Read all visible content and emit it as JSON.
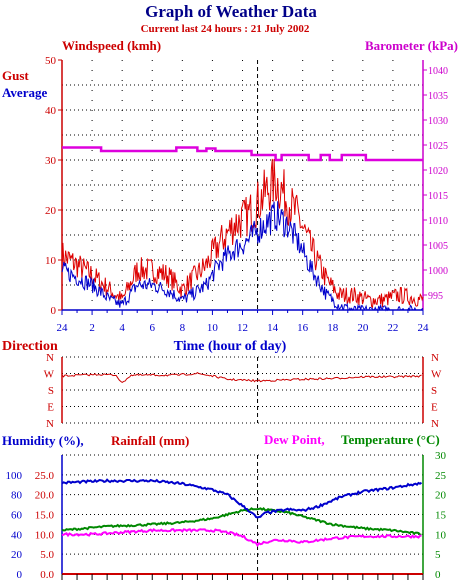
{
  "header": {
    "title": "Graph of Weather Data",
    "subtitle": "Current last 24 hours : 21 July 2002"
  },
  "colors": {
    "gust": "#dd0000",
    "average": "#0000cc",
    "barometer": "#dd00dd",
    "direction": "#cc0000",
    "humidity": "#0000cc",
    "rainfall": "#cc0000",
    "dewpoint": "#ff00ff",
    "temperature": "#008800",
    "axis_left": "#cc0000",
    "axis_right": "#cc00cc",
    "axis_blue": "#0000cc",
    "axis_green": "#008800"
  },
  "chart_data": [
    {
      "type": "line",
      "id": "wind",
      "labels": {
        "ylabel_left": "Windspeed (kmh)",
        "ylabel_right": "Barometer (kPa)",
        "xlabel": "Time (hour of day)",
        "legend_gust": "Gust",
        "legend_average": "Average"
      },
      "xticks": [
        "24",
        "2",
        "4",
        "6",
        "8",
        "10",
        "12",
        "14",
        "16",
        "18",
        "20",
        "22",
        "24"
      ],
      "yticks_left": [
        "0",
        "10",
        "20",
        "30",
        "40",
        "50"
      ],
      "yticks_right": [
        "995",
        "1000",
        "1005",
        "1010",
        "1015",
        "1020",
        "1025",
        "1030",
        "1035",
        "1040"
      ],
      "ylim_left": [
        0,
        50
      ],
      "ylim_right": [
        992,
        1042
      ],
      "now_marker_hour": 13,
      "grid": true,
      "barometer": [
        {
          "x": 0,
          "y": 1024.5
        },
        {
          "x": 2.6,
          "y": 1024.5
        },
        {
          "x": 2.6,
          "y": 1023.8
        },
        {
          "x": 7.6,
          "y": 1023.8
        },
        {
          "x": 7.6,
          "y": 1024.5
        },
        {
          "x": 9,
          "y": 1024.5
        },
        {
          "x": 9,
          "y": 1023.8
        },
        {
          "x": 9.6,
          "y": 1023.8
        },
        {
          "x": 9.6,
          "y": 1024.3
        },
        {
          "x": 10.2,
          "y": 1024.3
        },
        {
          "x": 10.2,
          "y": 1023.8
        },
        {
          "x": 12.6,
          "y": 1023.8
        },
        {
          "x": 12.6,
          "y": 1023
        },
        {
          "x": 14.2,
          "y": 1023
        },
        {
          "x": 14.2,
          "y": 1022
        },
        {
          "x": 14.6,
          "y": 1022
        },
        {
          "x": 14.6,
          "y": 1023
        },
        {
          "x": 16.4,
          "y": 1023
        },
        {
          "x": 16.4,
          "y": 1022
        },
        {
          "x": 17.2,
          "y": 1022
        },
        {
          "x": 17.2,
          "y": 1023
        },
        {
          "x": 17.8,
          "y": 1023
        },
        {
          "x": 17.8,
          "y": 1022
        },
        {
          "x": 18.6,
          "y": 1022
        },
        {
          "x": 18.6,
          "y": 1023
        },
        {
          "x": 20.2,
          "y": 1023
        },
        {
          "x": 20.2,
          "y": 1022
        },
        {
          "x": 24,
          "y": 1022
        }
      ],
      "gust_keypoints": [
        [
          0,
          11
        ],
        [
          2,
          7
        ],
        [
          3.2,
          4
        ],
        [
          4,
          2
        ],
        [
          5,
          8
        ],
        [
          6,
          8
        ],
        [
          7,
          7
        ],
        [
          8,
          4
        ],
        [
          8.6,
          6
        ],
        [
          9.6,
          9
        ],
        [
          10.4,
          13
        ],
        [
          11.4,
          17
        ],
        [
          12.4,
          19
        ],
        [
          13.4,
          23
        ],
        [
          14.2,
          26
        ],
        [
          15,
          22
        ],
        [
          15.8,
          18
        ],
        [
          16.6,
          12
        ],
        [
          17.6,
          6
        ],
        [
          18.4,
          3
        ],
        [
          19.4,
          3
        ],
        [
          20.4,
          2
        ],
        [
          21.4,
          2
        ],
        [
          22.4,
          3
        ],
        [
          24,
          2
        ]
      ],
      "average_keypoints": [
        [
          0,
          8
        ],
        [
          2,
          5
        ],
        [
          3.2,
          2
        ],
        [
          4,
          1
        ],
        [
          5,
          5
        ],
        [
          6,
          5
        ],
        [
          7,
          4
        ],
        [
          8,
          2
        ],
        [
          8.6,
          3
        ],
        [
          9.6,
          5
        ],
        [
          10.4,
          9
        ],
        [
          11.4,
          12
        ],
        [
          12.4,
          14
        ],
        [
          13.4,
          17
        ],
        [
          14.2,
          19
        ],
        [
          15,
          17
        ],
        [
          15.8,
          13
        ],
        [
          16.6,
          8
        ],
        [
          17.6,
          3
        ],
        [
          18.4,
          1
        ],
        [
          19.4,
          0
        ],
        [
          24,
          0
        ]
      ]
    },
    {
      "type": "line",
      "id": "direction",
      "labels": {
        "ylabel": "Direction"
      },
      "yticks": [
        "N",
        "W",
        "S",
        "E",
        "N"
      ],
      "keypoints": [
        [
          0,
          1.15
        ],
        [
          2.5,
          1.05
        ],
        [
          3.6,
          1.1
        ],
        [
          3.8,
          1.35
        ],
        [
          4,
          1.6
        ],
        [
          4.3,
          1.3
        ],
        [
          4.6,
          1.1
        ],
        [
          7.5,
          1.1
        ],
        [
          9,
          1.0
        ],
        [
          10,
          1.15
        ],
        [
          11,
          1.35
        ],
        [
          13,
          1.45
        ],
        [
          16,
          1.35
        ],
        [
          18,
          1.3
        ],
        [
          20,
          1.2
        ],
        [
          22,
          1.2
        ],
        [
          24,
          1.15
        ]
      ]
    },
    {
      "type": "line",
      "id": "humidity",
      "labels": {
        "ylabel_humidity": "Humidity (%),",
        "ylabel_rainfall": "Rainfall (mm)",
        "ylabel_dew": "Dew Point,",
        "ylabel_temp": "Temperature (°C)"
      },
      "yticks_humidity": [
        "0",
        "20",
        "40",
        "60",
        "80",
        "100"
      ],
      "yticks_rainfall": [
        "0.0",
        "5.0",
        "10.0",
        "15.0",
        "20.0",
        "25.0"
      ],
      "yticks_temp": [
        "0",
        "5",
        "10",
        "15",
        "20",
        "25",
        "30"
      ],
      "humidity_keypoints": [
        [
          0,
          92
        ],
        [
          3,
          94
        ],
        [
          6,
          94
        ],
        [
          8,
          91
        ],
        [
          10,
          85
        ],
        [
          11,
          80
        ],
        [
          11.8,
          71
        ],
        [
          12.6,
          62
        ],
        [
          13,
          56
        ],
        [
          13.6,
          62
        ],
        [
          15,
          65
        ],
        [
          16,
          64
        ],
        [
          17,
          68
        ],
        [
          18.6,
          78
        ],
        [
          20,
          83
        ],
        [
          22,
          87
        ],
        [
          24,
          92
        ]
      ],
      "temperature_keypoints": [
        [
          0,
          11
        ],
        [
          3,
          12
        ],
        [
          6,
          12.5
        ],
        [
          8,
          13
        ],
        [
          10,
          14
        ],
        [
          11,
          15
        ],
        [
          12,
          16
        ],
        [
          13,
          16.5
        ],
        [
          14,
          16
        ],
        [
          15,
          15.5
        ],
        [
          16,
          14.5
        ],
        [
          17,
          13.5
        ],
        [
          18,
          12.5
        ],
        [
          20,
          11.5
        ],
        [
          22,
          11
        ],
        [
          24,
          10
        ]
      ],
      "dewpoint_keypoints": [
        [
          0,
          10
        ],
        [
          2,
          10
        ],
        [
          4,
          10.5
        ],
        [
          6,
          11
        ],
        [
          8,
          11
        ],
        [
          10,
          11
        ],
        [
          11,
          10.5
        ],
        [
          12,
          9.5
        ],
        [
          13,
          7.5
        ],
        [
          14,
          8.5
        ],
        [
          15,
          8.5
        ],
        [
          16,
          8
        ],
        [
          17,
          8.5
        ],
        [
          18,
          9
        ],
        [
          20,
          9.5
        ],
        [
          22,
          9.5
        ],
        [
          24,
          9.5
        ]
      ],
      "rainfall_total": 0.0
    }
  ]
}
